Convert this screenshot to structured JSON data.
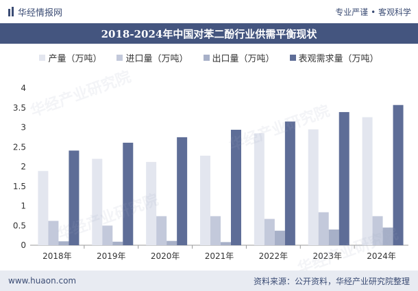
{
  "header": {
    "brand": "华经情报网",
    "tagline": "专业严谨 • 客观科学"
  },
  "footer": {
    "website": "www.huaon.com",
    "source": "资料来源：公开资料，华经产业研究院整理"
  },
  "watermark": "华经产业研究院",
  "colors": {
    "production": "#e3e6ef",
    "import": "#c3c9db",
    "export": "#a7b0c8",
    "demand": "#5e6d97",
    "title_bg": "#44557f"
  },
  "chart_data": {
    "type": "bar",
    "title": "2018-2024年中国对苯二酚行业供需平衡现状",
    "categories": [
      "2018年",
      "2019年",
      "2020年",
      "2021年",
      "2022年",
      "2023年",
      "2024年"
    ],
    "series": [
      {
        "name": "产量（万吨）",
        "color": "#e3e6ef",
        "values": [
          1.89,
          2.2,
          2.12,
          2.28,
          2.85,
          2.95,
          3.26
        ]
      },
      {
        "name": "进口量（万吨）",
        "color": "#c3c9db",
        "values": [
          0.62,
          0.5,
          0.74,
          0.74,
          0.67,
          0.84,
          0.74
        ]
      },
      {
        "name": "出口量（万吨）",
        "color": "#a7b0c8",
        "values": [
          0.1,
          0.09,
          0.11,
          0.08,
          0.37,
          0.4,
          0.45
        ]
      },
      {
        "name": "表观需求量（万吨）",
        "color": "#5e6d97",
        "values": [
          2.41,
          2.61,
          2.75,
          2.94,
          3.15,
          3.39,
          3.57
        ]
      }
    ],
    "y_ticks": [
      "0",
      "0.5",
      "1",
      "1.5",
      "2",
      "2.5",
      "3",
      "3.5",
      "4"
    ],
    "ylim": [
      0,
      4
    ],
    "legend_position": "top",
    "grid": false
  }
}
